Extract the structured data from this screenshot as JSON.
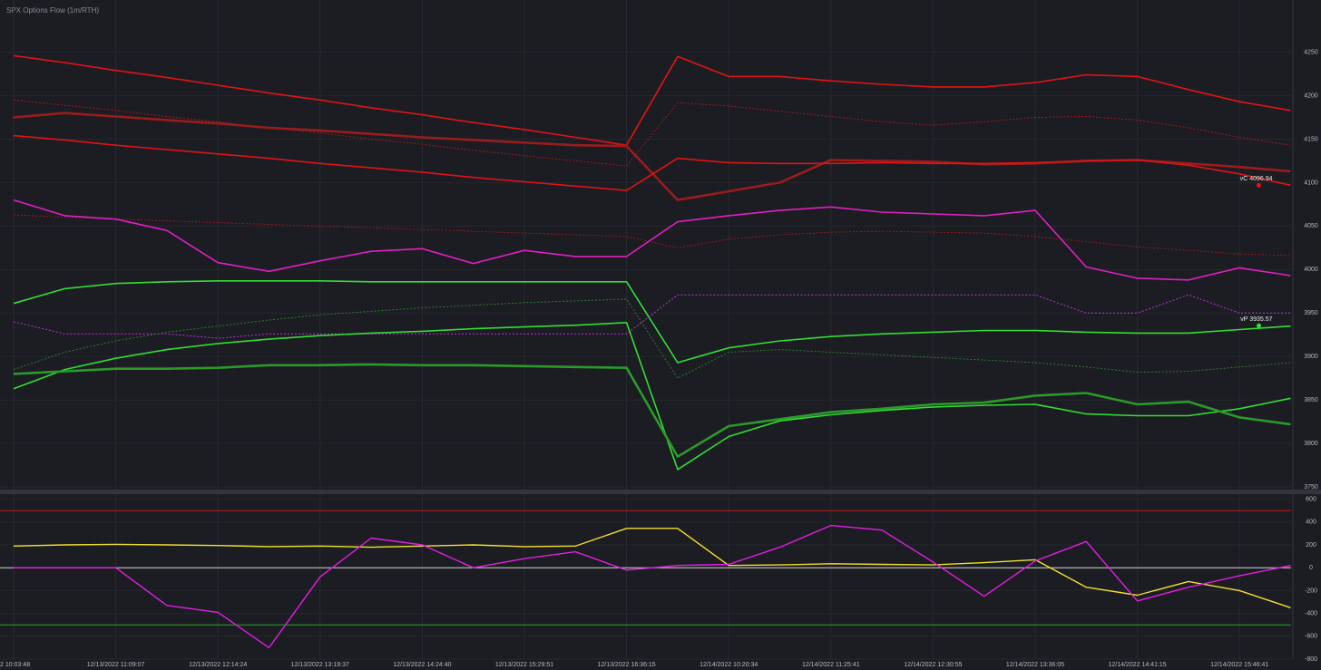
{
  "chart_data": [
    {
      "type": "line",
      "title": "SPX Options Flow (1m/RTH)",
      "ylim": [
        3747,
        4310
      ],
      "yticks": [
        3750,
        3800,
        3850,
        3900,
        3950,
        4000,
        4050,
        4100,
        4150,
        4200,
        4250
      ],
      "grid": true,
      "series": [
        {
          "color": "#e01414",
          "width": 1.6,
          "dash": false,
          "values": [
            4246,
            4238,
            4229,
            4221,
            4212,
            4203,
            4195,
            4186,
            4178,
            4169,
            4161,
            4152,
            4143,
            4245,
            4222,
            4222,
            4217,
            4213,
            4210,
            4210,
            4215,
            4224,
            4222,
            4207,
            4193,
            4183
          ]
        },
        {
          "color": "#b01a1a",
          "width": 0.9,
          "dash": true,
          "values": [
            4195,
            4189,
            4183,
            4176,
            4170,
            4163,
            4157,
            4150,
            4144,
            4137,
            4131,
            4125,
            4119,
            4192,
            4188,
            4182,
            4176,
            4170,
            4166,
            4170,
            4175,
            4176,
            4172,
            4163,
            4152,
            4143
          ]
        },
        {
          "color": "#9a1c1c",
          "width": 2.6,
          "dash": false,
          "values": [
            4175,
            4180,
            4176,
            4172,
            4168,
            4163,
            4160,
            4156,
            4152,
            4149,
            4146,
            4143,
            4142,
            4080,
            4090,
            4100,
            4126,
            4125,
            4124,
            4121,
            4122,
            4125,
            4126,
            4122,
            4118,
            4113
          ]
        },
        {
          "color": "#e01414",
          "width": 1.6,
          "dash": false,
          "values": [
            4154,
            4149,
            4143,
            4138,
            4133,
            4128,
            4122,
            4117,
            4112,
            4106,
            4101,
            4096,
            4091,
            4128,
            4123,
            4122,
            4122,
            4123,
            4122,
            4122,
            4123,
            4125,
            4126,
            4120,
            4110,
            4097
          ]
        },
        {
          "color": "#a01a1a",
          "width": 0.9,
          "dash": true,
          "values": [
            4063,
            4060,
            4058,
            4056,
            4054,
            4052,
            4050,
            4048,
            4046,
            4044,
            4042,
            4040,
            4038,
            4025,
            4035,
            4040,
            4043,
            4044,
            4043,
            4042,
            4038,
            4032,
            4026,
            4022,
            4018,
            4016
          ]
        },
        {
          "color": "#e020c0",
          "width": 1.6,
          "dash": false,
          "values": [
            4080,
            4062,
            4058,
            4045,
            4008,
            3998,
            4010,
            4021,
            4024,
            4007,
            4022,
            4015,
            4015,
            4055,
            4062,
            4068,
            4072,
            4066,
            4064,
            4062,
            4068,
            4003,
            3990,
            3988,
            4002,
            3993
          ]
        },
        {
          "color": "#c030e0",
          "width": 1.0,
          "dash": true,
          "values": [
            3940,
            3926,
            3926,
            3926,
            3921,
            3926,
            3926,
            3926,
            3926,
            3926,
            3926,
            3926,
            3926,
            3971,
            3971,
            3971,
            3971,
            3971,
            3971,
            3971,
            3971,
            3950,
            3950,
            3971,
            3950,
            3950
          ]
        },
        {
          "color": "#33dd33",
          "width": 1.6,
          "dash": false,
          "values": [
            3961,
            3978,
            3984,
            3986,
            3987,
            3987,
            3987,
            3986,
            3986,
            3986,
            3986,
            3986,
            3986,
            3893,
            3910,
            3918,
            3923,
            3926,
            3928,
            3930,
            3930,
            3928,
            3927,
            3927,
            3931,
            3935
          ]
        },
        {
          "color": "#2a8a2a",
          "width": 0.9,
          "dash": true,
          "values": [
            3885,
            3905,
            3918,
            3928,
            3935,
            3942,
            3948,
            3952,
            3956,
            3959,
            3962,
            3964,
            3966,
            3875,
            3905,
            3908,
            3905,
            3902,
            3899,
            3896,
            3893,
            3888,
            3882,
            3883,
            3888,
            3893
          ]
        },
        {
          "color": "#33dd33",
          "width": 1.6,
          "dash": false,
          "values": [
            3863,
            3885,
            3898,
            3908,
            3915,
            3920,
            3924,
            3927,
            3929,
            3932,
            3934,
            3936,
            3939,
            3770,
            3808,
            3826,
            3833,
            3838,
            3842,
            3844,
            3845,
            3834,
            3832,
            3832,
            3840,
            3852
          ]
        },
        {
          "color": "#2a9a2a",
          "width": 2.6,
          "dash": false,
          "values": [
            3880,
            3883,
            3886,
            3886,
            3887,
            3890,
            3890,
            3891,
            3890,
            3890,
            3889,
            3888,
            3887,
            3785,
            3820,
            3828,
            3836,
            3840,
            3845,
            3847,
            3855,
            3858,
            3845,
            3848,
            3830,
            3822
          ]
        }
      ],
      "annotations": [
        {
          "text": "vC 4096.94",
          "value": 4096.94,
          "color": "#e01414"
        },
        {
          "text": "vP 3935.57",
          "value": 3935.57,
          "color": "#33dd33"
        }
      ]
    },
    {
      "type": "line",
      "categories": [
        "2 10:03:48",
        null,
        "12/13/2022 11:09:07",
        null,
        "12/13/2022 12:14:24",
        null,
        "12/13/2022 13:19:37",
        null,
        "12/13/2022 14:24:40",
        null,
        "12/13/2022 15:29:51",
        null,
        "12/13/2022 16:36:15",
        null,
        "12/14/2022 10:20:34",
        null,
        "12/14/2022 11:25:41",
        null,
        "12/14/2022 12:30:55",
        null,
        "12/14/2022 13:36:05",
        null,
        "12/14/2022 14:41:15",
        null,
        "12/14/2022 15:46:41",
        null
      ],
      "ylim": [
        -800,
        645
      ],
      "yticks": [
        -800,
        -600,
        -400,
        -200,
        0,
        200,
        400,
        600
      ],
      "grid": true,
      "hlines": [
        {
          "value": 500,
          "color": "#c01818"
        },
        {
          "value": 0,
          "color": "#d8d8d8"
        },
        {
          "value": -500,
          "color": "#1fa81f"
        }
      ],
      "series": [
        {
          "color": "#f0e030",
          "width": 1.4,
          "dash": false,
          "values": [
            190,
            200,
            205,
            200,
            195,
            185,
            190,
            180,
            190,
            200,
            185,
            190,
            345,
            345,
            20,
            25,
            35,
            30,
            25,
            45,
            70,
            -170,
            -240,
            -120,
            -200,
            -350
          ]
        },
        {
          "color": "#e020e0",
          "width": 1.4,
          "dash": false,
          "values": [
            0,
            0,
            0,
            -330,
            -390,
            -700,
            -80,
            260,
            200,
            0,
            80,
            140,
            -20,
            20,
            30,
            180,
            370,
            330,
            50,
            -250,
            60,
            230,
            -290,
            -170,
            -70,
            20
          ]
        }
      ]
    }
  ]
}
